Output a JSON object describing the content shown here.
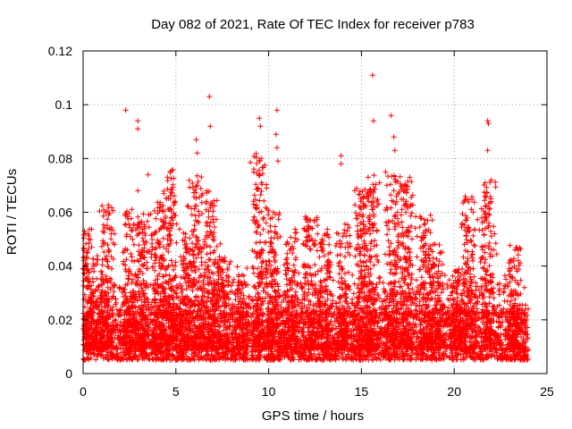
{
  "chart_data": {
    "type": "scatter",
    "title": "Day 082 of 2021, Rate Of TEC Index for receiver p783",
    "xlabel": "GPS time / hours",
    "ylabel": "ROTI / TECUs",
    "xlim": [
      0,
      25
    ],
    "ylim": [
      0,
      0.12
    ],
    "xticks": [
      0,
      5,
      10,
      15,
      20,
      25
    ],
    "xtick_labels": [
      "0",
      "5",
      "10",
      "15",
      "20",
      "25"
    ],
    "yticks": [
      0,
      0.02,
      0.04,
      0.06,
      0.08,
      0.1,
      0.12
    ],
    "ytick_labels": [
      "0",
      "0.02",
      "0.04",
      "0.06",
      "0.08",
      "0.1",
      "0.12"
    ],
    "grid": true,
    "marker": "+",
    "marker_color": "#ff0000",
    "series": [
      {
        "name": "ROTI",
        "x_range": [
          0,
          24
        ],
        "baseline_range": [
          0.005,
          0.022
        ],
        "peaks": [
          {
            "x": 2.3,
            "y": 0.098
          },
          {
            "x": 2.95,
            "y": 0.094
          },
          {
            "x": 2.95,
            "y": 0.091
          },
          {
            "x": 2.95,
            "y": 0.068
          },
          {
            "x": 3.5,
            "y": 0.074
          },
          {
            "x": 4.7,
            "y": 0.075
          },
          {
            "x": 6.1,
            "y": 0.087
          },
          {
            "x": 6.15,
            "y": 0.082
          },
          {
            "x": 6.8,
            "y": 0.103
          },
          {
            "x": 6.85,
            "y": 0.092
          },
          {
            "x": 9.5,
            "y": 0.095
          },
          {
            "x": 9.55,
            "y": 0.092
          },
          {
            "x": 9.6,
            "y": 0.08
          },
          {
            "x": 10.45,
            "y": 0.098
          },
          {
            "x": 10.4,
            "y": 0.089
          },
          {
            "x": 10.45,
            "y": 0.084
          },
          {
            "x": 10.5,
            "y": 0.079
          },
          {
            "x": 13.9,
            "y": 0.081
          },
          {
            "x": 13.9,
            "y": 0.078
          },
          {
            "x": 15.6,
            "y": 0.111
          },
          {
            "x": 15.65,
            "y": 0.094
          },
          {
            "x": 16.3,
            "y": 0.075
          },
          {
            "x": 16.6,
            "y": 0.096
          },
          {
            "x": 16.75,
            "y": 0.088
          },
          {
            "x": 16.8,
            "y": 0.083
          },
          {
            "x": 17.6,
            "y": 0.073
          },
          {
            "x": 21.8,
            "y": 0.094
          },
          {
            "x": 21.85,
            "y": 0.093
          },
          {
            "x": 21.8,
            "y": 0.083
          },
          {
            "x": 22.0,
            "y": 0.072
          }
        ],
        "bursts": [
          {
            "center": 0.1,
            "height": 0.052
          },
          {
            "center": 0.6,
            "height": 0.04
          },
          {
            "center": 1.3,
            "height": 0.059
          },
          {
            "center": 2.5,
            "height": 0.058
          },
          {
            "center": 3.2,
            "height": 0.056
          },
          {
            "center": 4.1,
            "height": 0.06
          },
          {
            "center": 4.7,
            "height": 0.073
          },
          {
            "center": 5.5,
            "height": 0.05
          },
          {
            "center": 6.1,
            "height": 0.07
          },
          {
            "center": 6.9,
            "height": 0.065
          },
          {
            "center": 7.5,
            "height": 0.04
          },
          {
            "center": 8.5,
            "height": 0.036
          },
          {
            "center": 9.5,
            "height": 0.078
          },
          {
            "center": 10.2,
            "height": 0.06
          },
          {
            "center": 11.2,
            "height": 0.05
          },
          {
            "center": 12.2,
            "height": 0.055
          },
          {
            "center": 13.0,
            "height": 0.05
          },
          {
            "center": 14.0,
            "height": 0.052
          },
          {
            "center": 15.0,
            "height": 0.065
          },
          {
            "center": 15.5,
            "height": 0.072
          },
          {
            "center": 16.7,
            "height": 0.07
          },
          {
            "center": 17.5,
            "height": 0.068
          },
          {
            "center": 18.4,
            "height": 0.055
          },
          {
            "center": 19.0,
            "height": 0.045
          },
          {
            "center": 20.2,
            "height": 0.035
          },
          {
            "center": 20.8,
            "height": 0.062
          },
          {
            "center": 21.8,
            "height": 0.068
          },
          {
            "center": 23.2,
            "height": 0.044
          }
        ]
      }
    ]
  }
}
